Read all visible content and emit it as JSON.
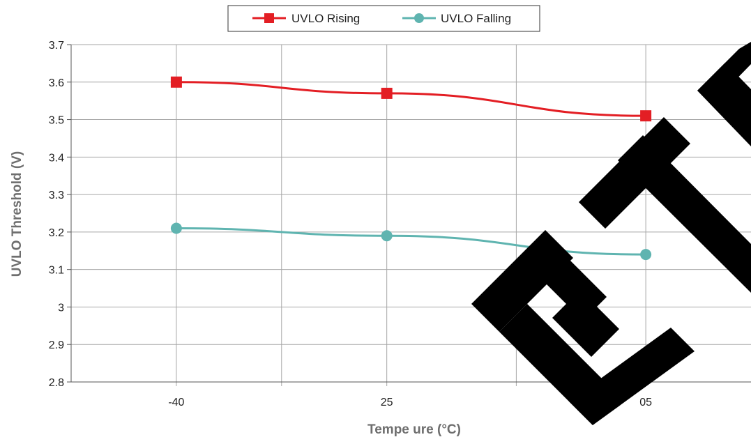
{
  "chart_data": {
    "type": "line",
    "x": [
      -40,
      25,
      105
    ],
    "xlabel": "Tempe  ure (°C)",
    "ylabel": "UVLO Threshold (V)",
    "xlim": [
      -72.5,
      137.5
    ],
    "ylim": [
      2.8,
      3.7
    ],
    "y_ticks": [
      "3.7",
      "3.6",
      "3.5",
      "3.4",
      "3.3",
      "3.2",
      "3.1",
      "3",
      "2.9",
      "2.8"
    ],
    "x_ticks": [
      "-40",
      "25",
      "05"
    ],
    "grid": true,
    "legend_position": "top-center",
    "series": [
      {
        "name": "UVLO Rising",
        "values": [
          3.6,
          3.57,
          3.51
        ],
        "color": "#e31e24",
        "marker": "square"
      },
      {
        "name": "UVLO Falling",
        "values": [
          3.21,
          3.19,
          3.14
        ],
        "color": "#5fb4b0",
        "marker": "circle"
      }
    ],
    "overlay_color": "#000000"
  }
}
